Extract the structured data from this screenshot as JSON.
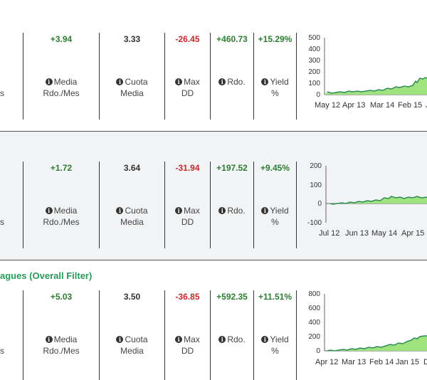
{
  "heading": {
    "text": "agues (Overall Filter)"
  },
  "edge_fragment": "s",
  "info_glyph": "i",
  "rows": [
    {
      "metrics": {
        "avg_month": {
          "value": "+3.94",
          "label1": "Media",
          "label2": "Rdo./Mes"
        },
        "avg_odds": {
          "value": "3.33",
          "label1": "Cuota",
          "label2": "Media"
        },
        "max_dd": {
          "value": "-26.45",
          "label1": "Max",
          "label2": "DD"
        },
        "result": {
          "value": "+460.73",
          "label1": "Rdo."
        },
        "yield": {
          "value": "+15.29%",
          "label1": "Yield",
          "label2": "%"
        }
      },
      "chart": {
        "y_ticks": [
          "500",
          "400",
          "300",
          "200",
          "100",
          "0"
        ],
        "x_ticks": [
          "May 12",
          "Apr 13",
          "Mar 14",
          "Feb 15",
          "J"
        ]
      }
    },
    {
      "metrics": {
        "avg_month": {
          "value": "+1.72",
          "label1": "Media",
          "label2": "Rdo./Mes"
        },
        "avg_odds": {
          "value": "3.64",
          "label1": "Cuota",
          "label2": "Media"
        },
        "max_dd": {
          "value": "-31.94",
          "label1": "Max",
          "label2": "DD"
        },
        "result": {
          "value": "+197.52",
          "label1": "Rdo."
        },
        "yield": {
          "value": "+9.45%",
          "label1": "Yield",
          "label2": "%"
        }
      },
      "chart": {
        "y_ticks": [
          "200",
          "100",
          "0",
          "-100"
        ],
        "x_ticks": [
          "Jul 12",
          "Jun 13",
          "May 14",
          "Apr 15"
        ]
      }
    },
    {
      "metrics": {
        "avg_month": {
          "value": "+5.03",
          "label1": "Media",
          "label2": "Rdo./Mes"
        },
        "avg_odds": {
          "value": "3.50",
          "label1": "Cuota",
          "label2": "Media"
        },
        "max_dd": {
          "value": "-36.85",
          "label1": "Max",
          "label2": "DD"
        },
        "result": {
          "value": "+592.35",
          "label1": "Rdo."
        },
        "yield": {
          "value": "+11.51%",
          "label1": "Yield",
          "label2": "%"
        }
      },
      "chart": {
        "y_ticks": [
          "800",
          "600",
          "400",
          "200",
          "0"
        ],
        "x_ticks": [
          "Apr 12",
          "Mar 13",
          "Feb 14",
          "Jan 15",
          "D"
        ]
      }
    }
  ],
  "colors": {
    "positive": "#2e7d32",
    "negative": "#c62828",
    "heading": "#2a9a5a",
    "chart_fill": "#9ee37d",
    "chart_line": "#2e8b57"
  }
}
